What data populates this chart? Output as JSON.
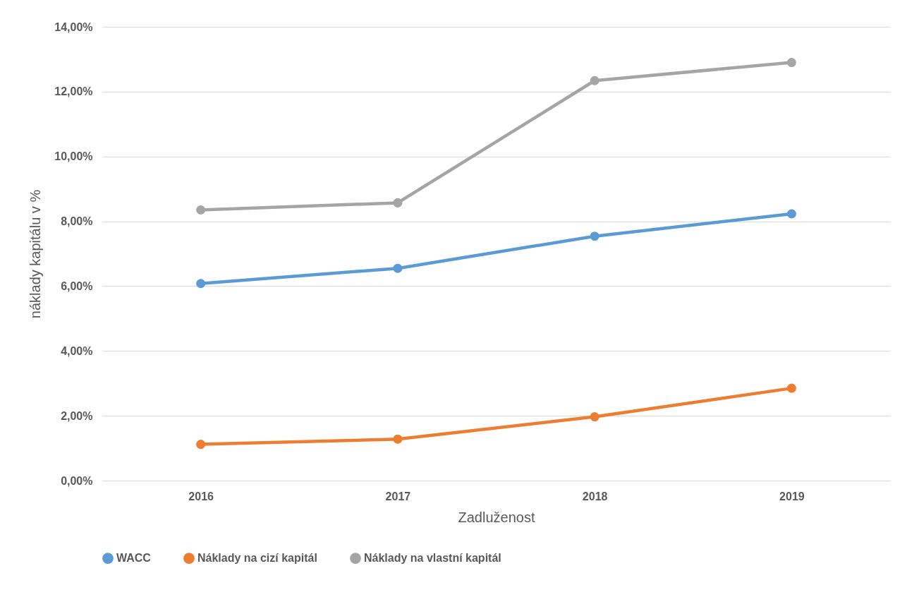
{
  "chart_data": {
    "type": "line",
    "xlabel": "Zadluženost",
    "ylabel": "náklady kapitálu v %",
    "categories": [
      "2016",
      "2017",
      "2018",
      "2019"
    ],
    "series": [
      {
        "name": "WACC",
        "color": "#5b9bd5",
        "values": [
          6.08,
          6.55,
          7.54,
          8.23
        ]
      },
      {
        "name": "Náklady na cizí kapitál",
        "color": "#ed7d31",
        "values": [
          1.12,
          1.28,
          1.97,
          2.85
        ]
      },
      {
        "name": "Náklady na vlastní kapitál",
        "color": "#a5a5a5",
        "values": [
          8.35,
          8.57,
          12.34,
          12.9
        ]
      }
    ],
    "ylim": [
      0,
      14
    ],
    "yticks": [
      {
        "value": 0,
        "label": "0,00%"
      },
      {
        "value": 2,
        "label": "2,00%"
      },
      {
        "value": 4,
        "label": "4,00%"
      },
      {
        "value": 6,
        "label": "6,00%"
      },
      {
        "value": 8,
        "label": "8,00%"
      },
      {
        "value": 10,
        "label": "10,00%"
      },
      {
        "value": 12,
        "label": "12,00%"
      },
      {
        "value": 14,
        "label": "14,00%"
      }
    ],
    "grid": "y",
    "legend": "bottom",
    "marker": "circle",
    "line_style": "solid"
  }
}
